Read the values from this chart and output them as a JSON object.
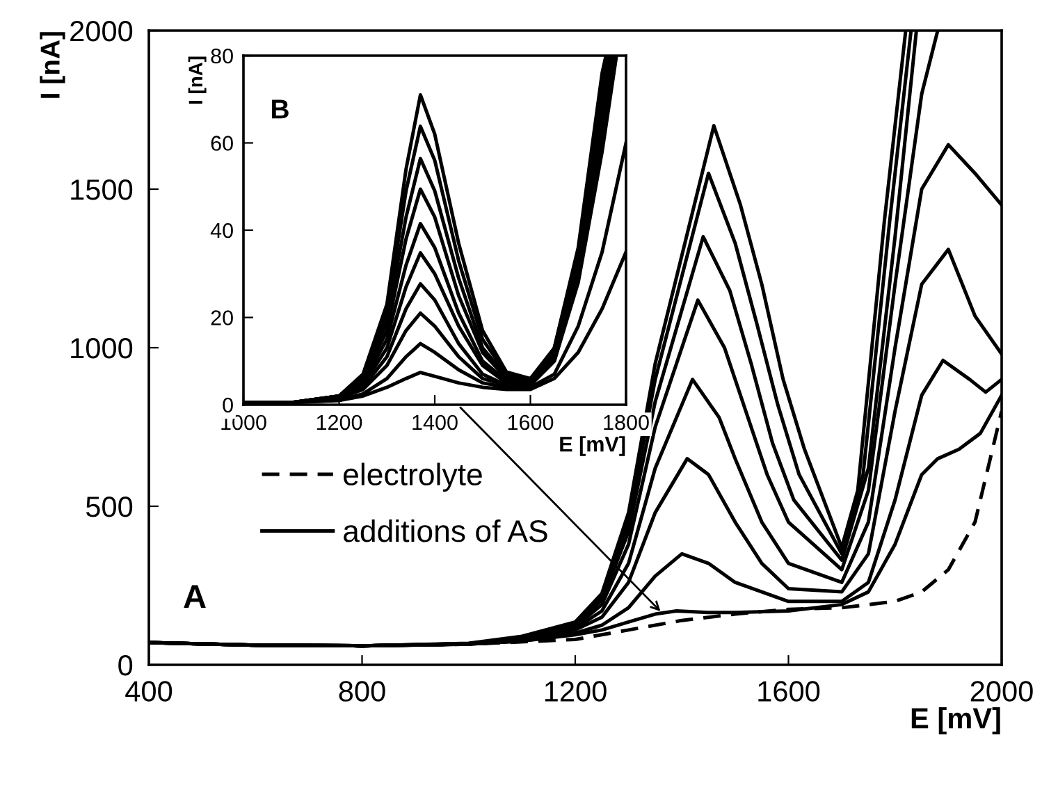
{
  "chart_data": [
    {
      "type": "line",
      "xlabel": "E [mV]",
      "ylabel": "I [nA]",
      "xlim": [
        400,
        2000
      ],
      "ylim": [
        0,
        2000
      ],
      "xticks": [
        400,
        800,
        1200,
        1600,
        2000
      ],
      "yticks": [
        0,
        500,
        1000,
        1500,
        2000
      ],
      "grid": false,
      "legend": "bottom left",
      "marker": "none",
      "annotations": [
        "A"
      ],
      "series": [
        {
          "name": "electrolyte",
          "color": "#000000",
          "line_style": "dashed",
          "x": [
            400,
            600,
            800,
            1000,
            1200,
            1300,
            1400,
            1500,
            1600,
            1700,
            1800,
            1850,
            1900,
            1950,
            2000
          ],
          "values": [
            70,
            62,
            60,
            65,
            80,
            110,
            140,
            160,
            175,
            180,
            200,
            230,
            300,
            450,
            800
          ]
        },
        {
          "name": "additions of AS",
          "color": "#000000",
          "line_style": "solid",
          "x": [
            400,
            600,
            800,
            1000,
            1100,
            1200,
            1250,
            1300,
            1350,
            1390,
            1450,
            1500,
            1600,
            1700,
            1750,
            1800,
            1850,
            1880,
            1920,
            1960,
            2000
          ],
          "values": [
            70,
            62,
            60,
            65,
            75,
            95,
            110,
            135,
            160,
            170,
            165,
            165,
            170,
            190,
            230,
            380,
            600,
            650,
            680,
            730,
            850
          ]
        },
        {
          "color": "#000000",
          "line_style": "solid",
          "x": [
            400,
            600,
            800,
            1000,
            1100,
            1200,
            1250,
            1300,
            1350,
            1400,
            1450,
            1500,
            1600,
            1700,
            1750,
            1800,
            1850,
            1890,
            1940,
            1970,
            2000
          ],
          "values": [
            70,
            62,
            60,
            65,
            75,
            100,
            125,
            180,
            280,
            350,
            320,
            260,
            200,
            200,
            260,
            520,
            850,
            960,
            900,
            860,
            900
          ]
        },
        {
          "color": "#000000",
          "line_style": "solid",
          "x": [
            400,
            600,
            800,
            1000,
            1100,
            1200,
            1250,
            1300,
            1350,
            1410,
            1450,
            1500,
            1550,
            1600,
            1700,
            1750,
            1800,
            1850,
            1900,
            1950,
            2000
          ],
          "values": [
            70,
            62,
            60,
            66,
            78,
            110,
            150,
            260,
            480,
            650,
            600,
            450,
            320,
            240,
            230,
            350,
            800,
            1200,
            1310,
            1100,
            980
          ]
        },
        {
          "color": "#000000",
          "line_style": "solid",
          "x": [
            400,
            600,
            800,
            1000,
            1100,
            1200,
            1250,
            1300,
            1350,
            1420,
            1470,
            1500,
            1550,
            1600,
            1700,
            1750,
            1800,
            1850,
            1900,
            1950,
            2000
          ],
          "values": [
            70,
            62,
            60,
            66,
            80,
            115,
            170,
            320,
            620,
            900,
            780,
            650,
            450,
            320,
            260,
            450,
            1000,
            1500,
            1640,
            1550,
            1450
          ]
        },
        {
          "color": "#000000",
          "line_style": "solid",
          "x": [
            400,
            600,
            800,
            1000,
            1100,
            1200,
            1250,
            1300,
            1350,
            1430,
            1480,
            1520,
            1560,
            1600,
            1700,
            1750,
            1800,
            1850,
            1880
          ],
          "values": [
            70,
            62,
            60,
            66,
            82,
            120,
            190,
            380,
            750,
            1150,
            1000,
            800,
            600,
            450,
            300,
            550,
            1200,
            1800,
            2000
          ]
        },
        {
          "color": "#000000",
          "line_style": "solid",
          "x": [
            400,
            600,
            800,
            1000,
            1100,
            1200,
            1250,
            1300,
            1350,
            1440,
            1490,
            1530,
            1570,
            1610,
            1700,
            1750,
            1800,
            1840
          ],
          "values": [
            70,
            62,
            60,
            67,
            85,
            125,
            205,
            420,
            830,
            1350,
            1180,
            950,
            700,
            520,
            330,
            620,
            1350,
            2000
          ]
        },
        {
          "color": "#000000",
          "line_style": "solid",
          "x": [
            400,
            600,
            800,
            1000,
            1100,
            1200,
            1250,
            1300,
            1350,
            1450,
            1500,
            1540,
            1580,
            1620,
            1700,
            1740,
            1790,
            1830
          ],
          "values": [
            70,
            62,
            60,
            67,
            87,
            130,
            215,
            450,
            900,
            1550,
            1330,
            1080,
            820,
            600,
            350,
            600,
            1400,
            2000
          ]
        },
        {
          "color": "#000000",
          "line_style": "solid",
          "x": [
            400,
            600,
            800,
            1000,
            1100,
            1200,
            1250,
            1300,
            1350,
            1460,
            1510,
            1550,
            1590,
            1630,
            1700,
            1730,
            1780,
            1820
          ],
          "values": [
            70,
            62,
            60,
            68,
            90,
            135,
            225,
            480,
            950,
            1700,
            1450,
            1200,
            900,
            680,
            370,
            550,
            1400,
            2000
          ]
        }
      ]
    },
    {
      "type": "line",
      "xlabel": "E [mV]",
      "ylabel": "I [nA]",
      "xlim": [
        1000,
        1800
      ],
      "ylim": [
        0,
        80
      ],
      "xticks": [
        1000,
        1200,
        1400,
        1600,
        1800
      ],
      "yticks": [
        0,
        20,
        40,
        60,
        80
      ],
      "grid": false,
      "marker": "none",
      "annotations": [
        "B"
      ],
      "series": [
        {
          "color": "#000000",
          "x": [
            1000,
            1100,
            1200,
            1250,
            1300,
            1340,
            1370,
            1400,
            1450,
            1500,
            1550,
            1600,
            1650,
            1700,
            1750,
            1800
          ],
          "values": [
            0.5,
            0.5,
            1,
            2,
            4,
            6,
            7.4,
            6.5,
            5,
            4,
            3.5,
            3.5,
            6,
            12,
            22,
            35
          ]
        },
        {
          "color": "#000000",
          "x": [
            1000,
            1100,
            1200,
            1250,
            1300,
            1340,
            1370,
            1400,
            1450,
            1500,
            1550,
            1600,
            1650,
            1700,
            1750,
            1800
          ],
          "values": [
            0.5,
            0.5,
            1,
            2.5,
            6,
            11,
            14,
            12,
            8,
            5,
            4,
            4,
            7,
            18,
            35,
            60
          ]
        },
        {
          "color": "#000000",
          "x": [
            1000,
            1100,
            1200,
            1250,
            1300,
            1340,
            1370,
            1400,
            1450,
            1500,
            1550,
            1600,
            1650,
            1700,
            1750,
            1780
          ],
          "values": [
            0.5,
            0.5,
            1.5,
            3.5,
            9,
            17,
            21,
            18,
            11,
            6,
            4.5,
            4.5,
            10,
            28,
            58,
            80
          ]
        },
        {
          "color": "#000000",
          "x": [
            1000,
            1100,
            1200,
            1250,
            1300,
            1340,
            1370,
            1400,
            1450,
            1500,
            1550,
            1600,
            1650,
            1700,
            1750,
            1775
          ],
          "values": [
            0.5,
            0.5,
            1.5,
            4,
            11,
            22,
            27.7,
            24,
            14,
            7,
            4.5,
            4.5,
            10,
            29,
            62,
            80
          ]
        },
        {
          "color": "#000000",
          "x": [
            1000,
            1100,
            1200,
            1250,
            1300,
            1340,
            1370,
            1400,
            1450,
            1500,
            1550,
            1600,
            1650,
            1700,
            1750,
            1770
          ],
          "values": [
            0.5,
            0.5,
            1.5,
            4.5,
            13,
            27,
            34.8,
            30,
            18,
            9,
            5,
            5,
            11,
            31,
            65,
            80
          ]
        },
        {
          "color": "#000000",
          "x": [
            1000,
            1100,
            1200,
            1250,
            1300,
            1340,
            1370,
            1400,
            1450,
            1500,
            1550,
            1600,
            1650,
            1700,
            1750,
            1768
          ],
          "values": [
            0.5,
            0.5,
            2,
            5,
            15,
            32,
            41.5,
            36,
            21,
            10,
            5.5,
            5,
            11,
            32,
            68,
            80
          ]
        },
        {
          "color": "#000000",
          "x": [
            1000,
            1100,
            1200,
            1250,
            1300,
            1340,
            1370,
            1400,
            1450,
            1500,
            1550,
            1600,
            1650,
            1700,
            1750,
            1765
          ],
          "values": [
            0.5,
            0.5,
            2,
            5.5,
            17,
            38,
            49.4,
            43,
            25,
            12,
            6,
            5,
            12,
            33,
            70,
            80
          ]
        },
        {
          "color": "#000000",
          "x": [
            1000,
            1100,
            1200,
            1250,
            1300,
            1340,
            1370,
            1400,
            1450,
            1500,
            1550,
            1600,
            1650,
            1700,
            1750,
            1762
          ],
          "values": [
            0.5,
            0.5,
            2,
            6,
            19,
            43,
            56.4,
            49,
            29,
            13,
            6.5,
            5.5,
            12,
            34,
            72,
            80
          ]
        },
        {
          "color": "#000000",
          "x": [
            1000,
            1100,
            1200,
            1250,
            1300,
            1340,
            1370,
            1400,
            1450,
            1500,
            1550,
            1600,
            1650,
            1700,
            1750,
            1760
          ],
          "values": [
            0.5,
            0.5,
            2,
            6.5,
            21,
            49,
            63.8,
            56,
            33,
            15,
            7,
            5.5,
            13,
            35,
            74,
            80
          ]
        },
        {
          "color": "#000000",
          "x": [
            1000,
            1100,
            1200,
            1250,
            1300,
            1340,
            1370,
            1400,
            1450,
            1500,
            1550,
            1600,
            1650,
            1700,
            1750,
            1758
          ],
          "values": [
            0.5,
            0.5,
            2,
            7,
            23,
            54,
            71,
            62,
            37,
            17,
            7.5,
            6,
            13,
            36,
            76,
            80
          ]
        }
      ]
    }
  ]
}
